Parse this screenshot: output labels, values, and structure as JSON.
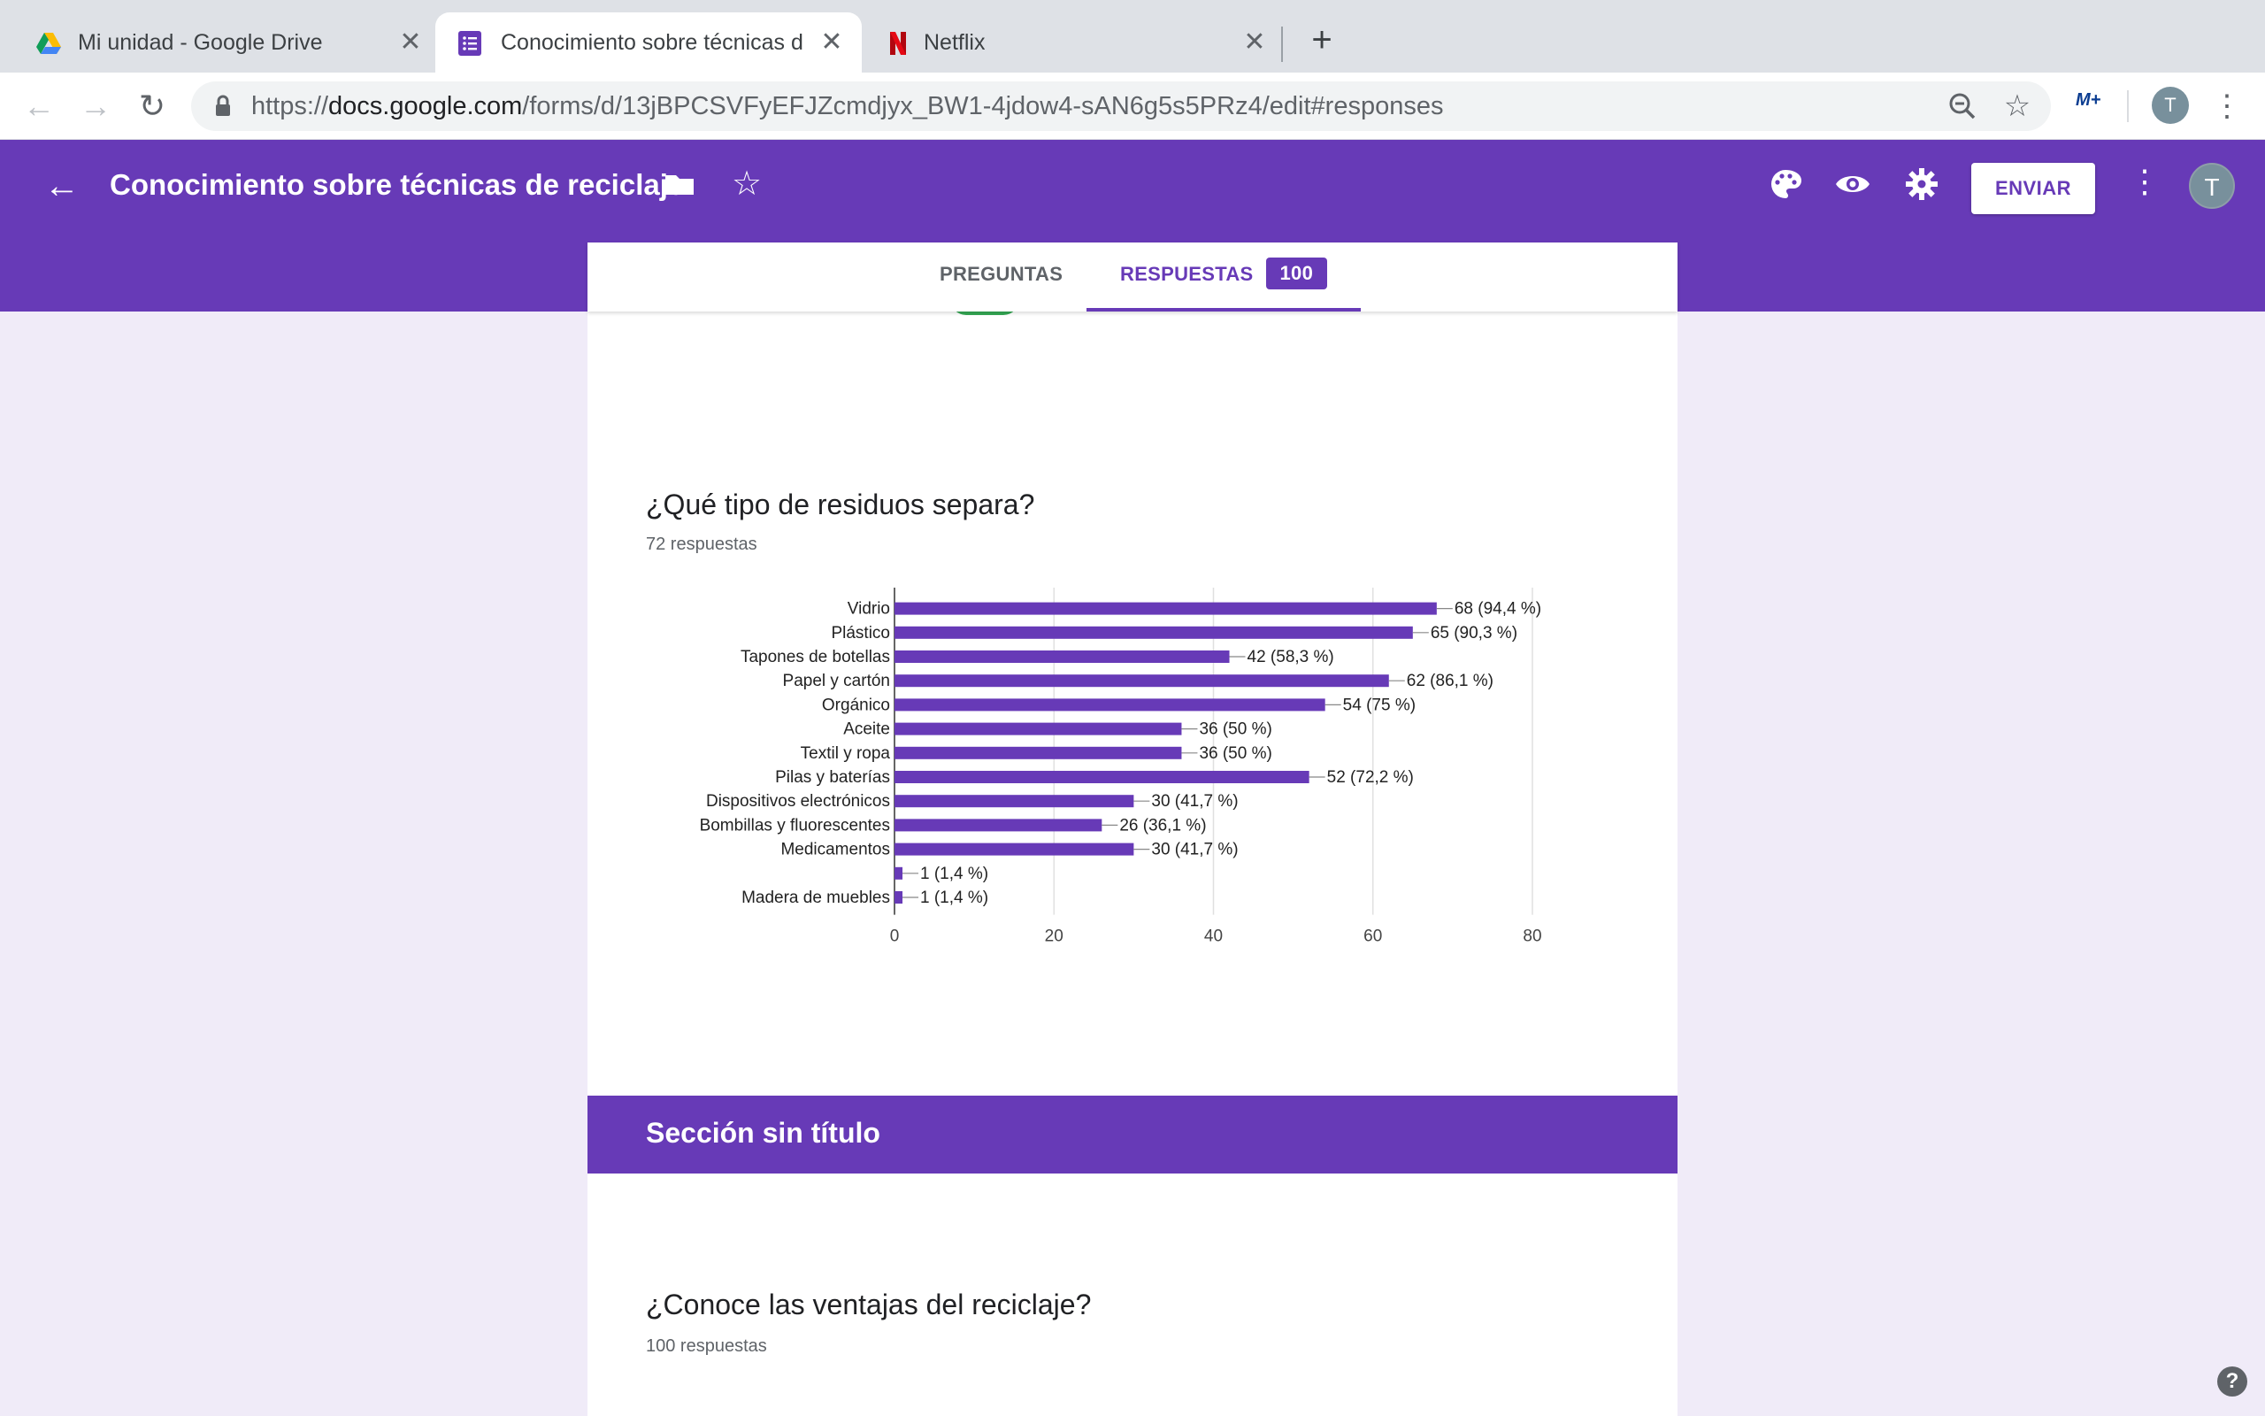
{
  "browser": {
    "tabs": [
      {
        "title": "Mi unidad - Google Drive",
        "icon": "google-drive-icon"
      },
      {
        "title": "Conocimiento sobre técnicas de reciclaje",
        "icon": "google-forms-icon"
      },
      {
        "title": "Netflix",
        "icon": "netflix-icon"
      }
    ],
    "close_glyph": "✕",
    "newtab_glyph": "+",
    "url_scheme": "https://",
    "url_host": "docs.google.com",
    "url_path": "/forms/d/13jBPCSVFyEFJZcmdjyx_BW1-4jdow4-sAN6g5s5PRz4/edit#responses",
    "profile_initial": "T",
    "extension_label": "M+"
  },
  "header": {
    "title": "Conocimiento sobre técnicas de reciclaje",
    "send_label": "ENVIAR",
    "avatar_initial": "T",
    "accent": "#673ab7"
  },
  "tabs": {
    "questions_label": "PREGUNTAS",
    "responses_label": "RESPUESTAS",
    "responses_count": "100"
  },
  "question1": {
    "title": "¿Qué tipo de residuos separa?",
    "subtitle": "72 respuestas"
  },
  "section": {
    "title": "Sección sin título"
  },
  "question2": {
    "title": "¿Conoce las ventajas del reciclaje?",
    "subtitle": "100 respuestas"
  },
  "chart_data": {
    "type": "bar",
    "orientation": "horizontal",
    "categories": [
      "Vidrio",
      "Plástico",
      "Tapones de botellas",
      "Papel y cartón",
      "Orgánico",
      "Aceite",
      "Textil y ropa",
      "Pilas y baterías",
      "Dispositivos electrónicos",
      "Bombillas y fluorescentes",
      "Medicamentos",
      "",
      "Madera de muebles"
    ],
    "values": [
      68,
      65,
      42,
      62,
      54,
      36,
      36,
      52,
      30,
      26,
      30,
      1,
      1
    ],
    "data_labels": [
      "68 (94,4 %)",
      "65 (90,3 %)",
      "42 (58,3 %)",
      "62 (86,1 %)",
      "54 (75 %)",
      "36 (50 %)",
      "36 (50 %)",
      "52 (72,2 %)",
      "30 (41,7 %)",
      "26 (36,1 %)",
      "30 (41,7 %)",
      "1 (1,4 %)",
      "1 (1,4 %)"
    ],
    "xlim": [
      0,
      80
    ],
    "xticks": [
      0,
      20,
      40,
      60,
      80
    ],
    "grid": true,
    "bar_color": "#673ab7"
  }
}
